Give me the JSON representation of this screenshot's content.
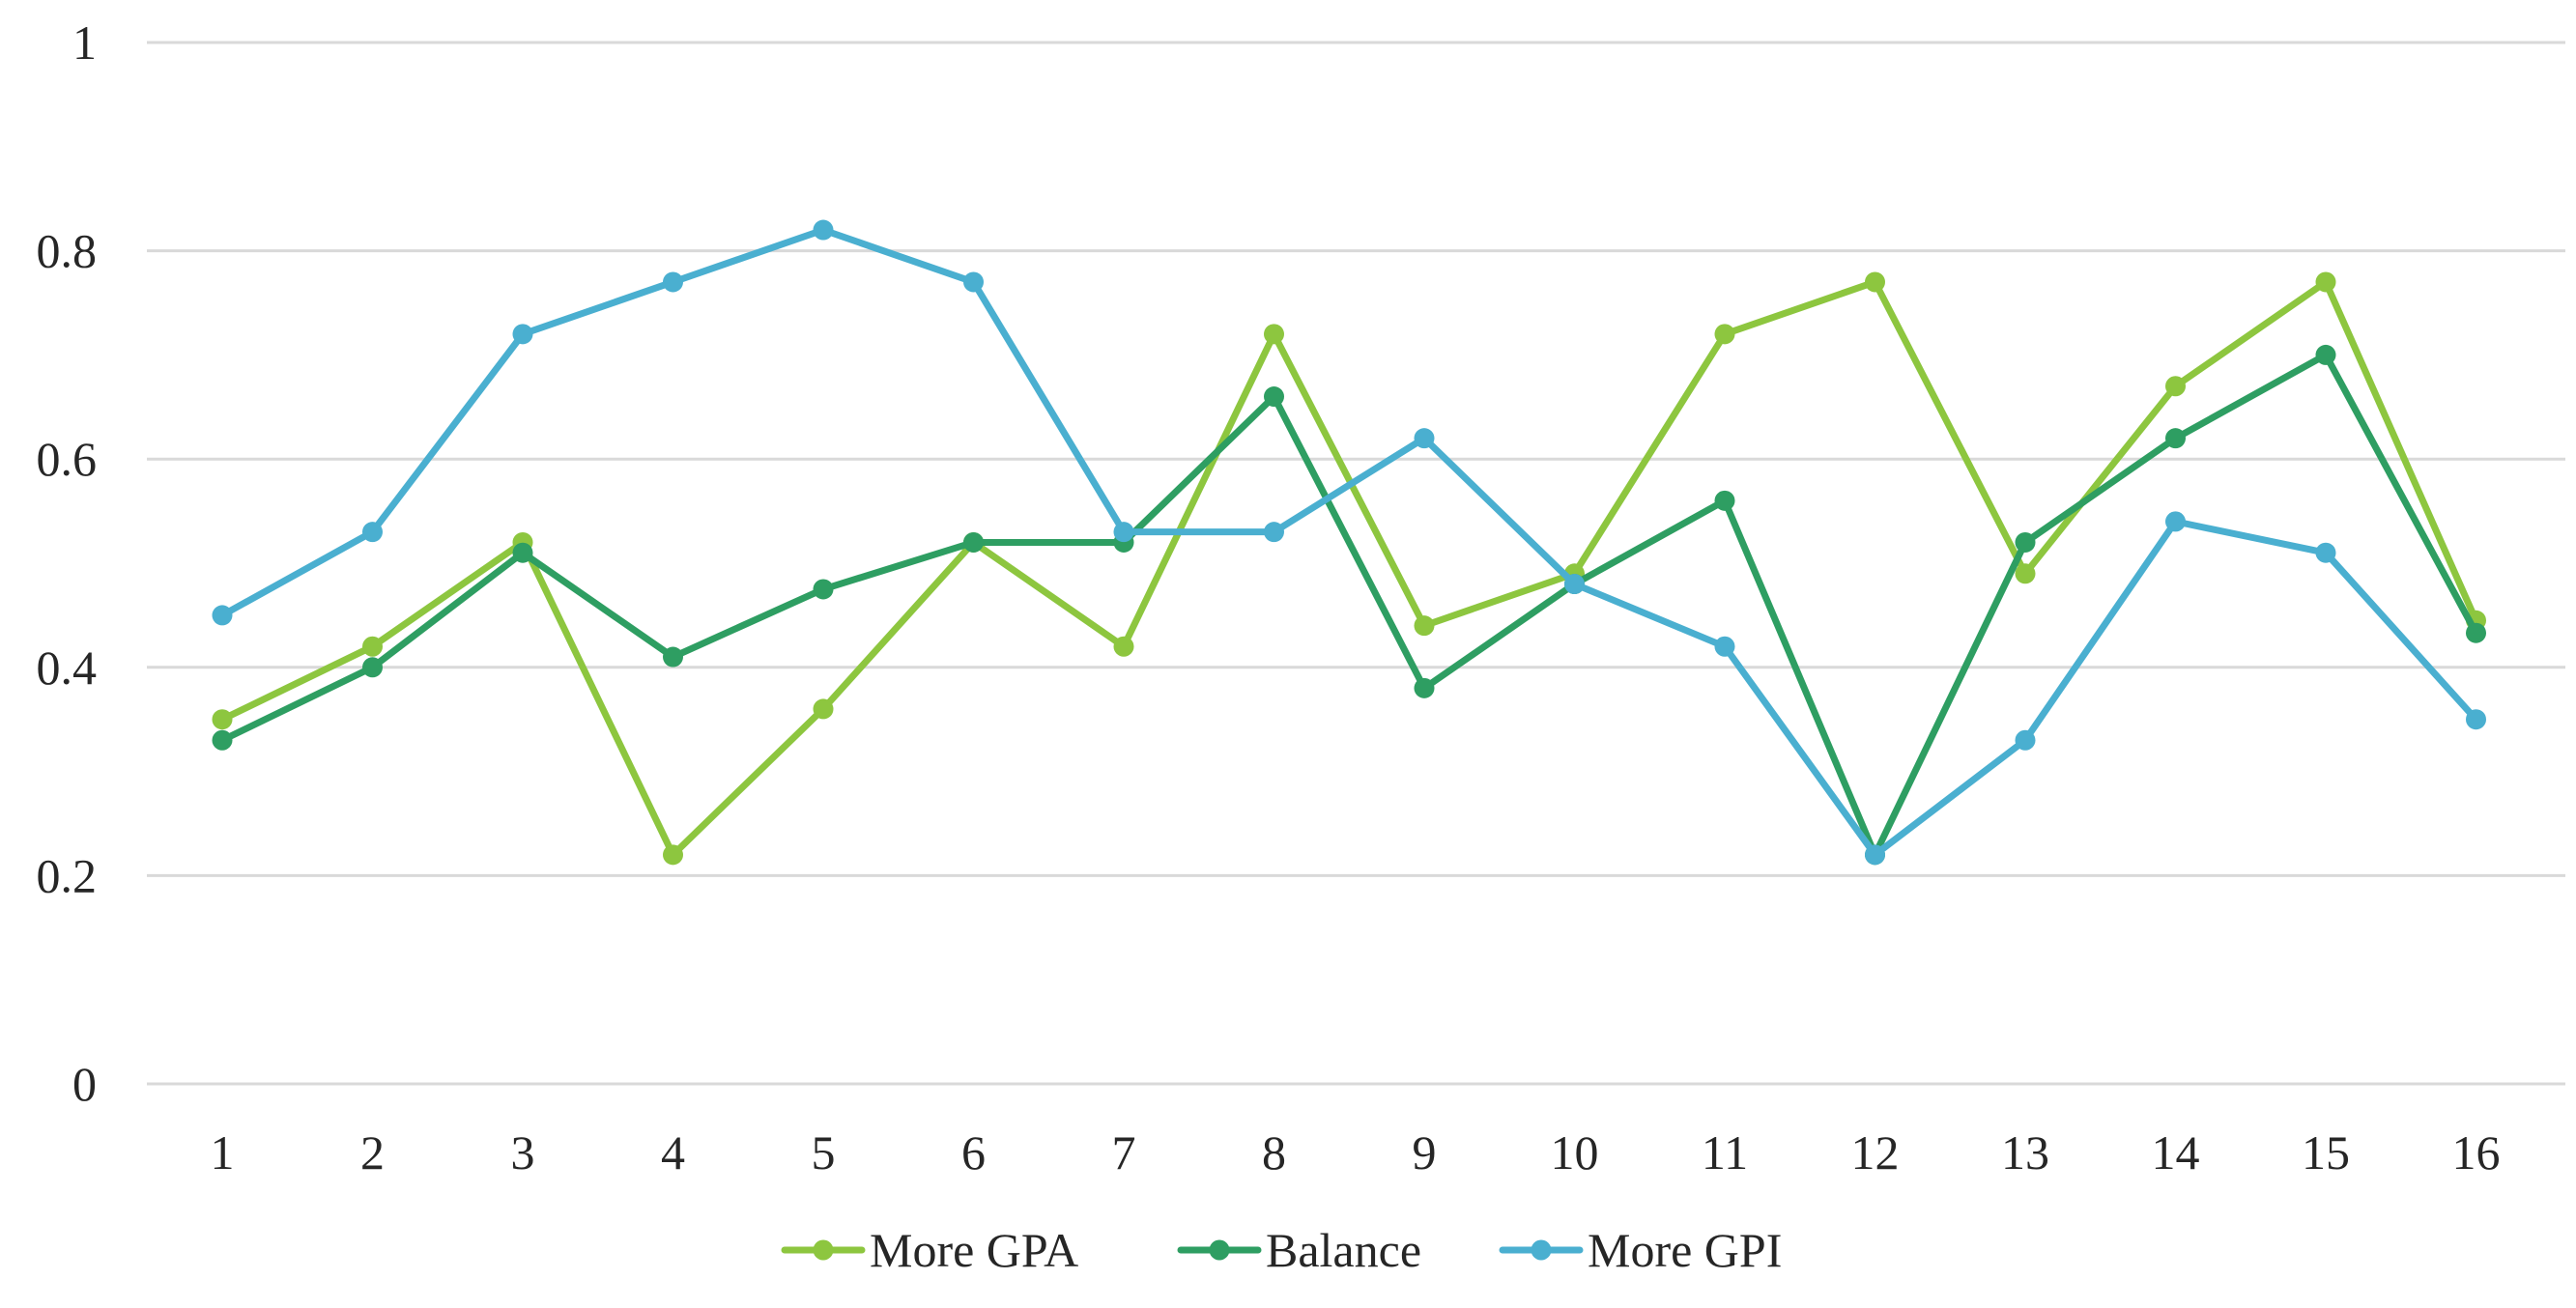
{
  "chart_data": {
    "type": "line",
    "title": "",
    "xlabel": "",
    "ylabel": "",
    "categories": [
      "1",
      "2",
      "3",
      "4",
      "5",
      "6",
      "7",
      "8",
      "9",
      "10",
      "11",
      "12",
      "13",
      "14",
      "15",
      "16"
    ],
    "ylim": [
      0,
      1
    ],
    "yticks": [
      0,
      0.2,
      0.4,
      0.6,
      0.8,
      1
    ],
    "ytick_labels": [
      "0",
      "0.2",
      "0.4",
      "0.6",
      "0.8",
      "1"
    ],
    "grid": true,
    "legend_position": "bottom",
    "series": [
      {
        "name": "More GPA",
        "color": "#8DC63F",
        "values": [
          0.35,
          0.42,
          0.52,
          0.22,
          0.36,
          0.52,
          0.42,
          0.72,
          0.44,
          0.49,
          0.72,
          0.77,
          0.49,
          0.67,
          0.77,
          0.445
        ]
      },
      {
        "name": "Balance",
        "color": "#2E9E62",
        "values": [
          0.33,
          0.4,
          0.51,
          0.41,
          0.475,
          0.52,
          0.52,
          0.66,
          0.38,
          0.48,
          0.56,
          0.22,
          0.52,
          0.62,
          0.7,
          0.433
        ]
      },
      {
        "name": "More GPI",
        "color": "#4AAFD0",
        "values": [
          0.45,
          0.53,
          0.72,
          0.77,
          0.82,
          0.77,
          0.53,
          0.53,
          0.62,
          0.48,
          0.42,
          0.22,
          0.33,
          0.54,
          0.51,
          0.35
        ]
      }
    ]
  }
}
